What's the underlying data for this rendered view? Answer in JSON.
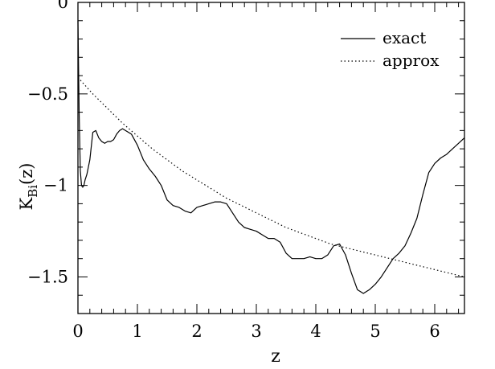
{
  "chart_data": {
    "type": "line",
    "title": "",
    "xlabel": "z",
    "ylabel": "K",
    "ylabel_sub": "Bi",
    "ylabel_suffix": "(z)",
    "xlim": [
      0,
      6.5
    ],
    "ylim": [
      -1.7,
      0
    ],
    "grid": false,
    "legend_position": "top-right",
    "x_ticks": [
      {
        "value": 0,
        "label": "0"
      },
      {
        "value": 1,
        "label": "1"
      },
      {
        "value": 2,
        "label": "2"
      },
      {
        "value": 3,
        "label": "3"
      },
      {
        "value": 4,
        "label": "4"
      },
      {
        "value": 5,
        "label": "5"
      },
      {
        "value": 6,
        "label": "6"
      }
    ],
    "y_ticks": [
      {
        "value": 0,
        "label": "0"
      },
      {
        "value": -0.5,
        "label": "−0.5"
      },
      {
        "value": -1,
        "label": "−1"
      },
      {
        "value": -1.5,
        "label": "−1.5"
      }
    ],
    "series": [
      {
        "name": "exact",
        "style": "solid",
        "color": "#000000",
        "x": [
          0,
          0.02,
          0.04,
          0.06,
          0.08,
          0.1,
          0.12,
          0.15,
          0.2,
          0.25,
          0.3,
          0.35,
          0.4,
          0.45,
          0.5,
          0.55,
          0.6,
          0.65,
          0.7,
          0.75,
          0.8,
          0.9,
          1.0,
          1.1,
          1.2,
          1.3,
          1.4,
          1.5,
          1.6,
          1.7,
          1.8,
          1.9,
          2.0,
          2.1,
          2.2,
          2.3,
          2.4,
          2.5,
          2.6,
          2.7,
          2.8,
          2.9,
          3.0,
          3.1,
          3.2,
          3.3,
          3.4,
          3.5,
          3.6,
          3.7,
          3.8,
          3.9,
          4.0,
          4.1,
          4.2,
          4.3,
          4.4,
          4.5,
          4.6,
          4.7,
          4.8,
          4.9,
          5.0,
          5.1,
          5.2,
          5.3,
          5.4,
          5.5,
          5.6,
          5.7,
          5.8,
          5.9,
          6.0,
          6.1,
          6.2,
          6.3,
          6.4,
          6.5
        ],
        "y": [
          -0.1,
          -0.6,
          -0.92,
          -1.0,
          -1.01,
          -1.0,
          -0.97,
          -0.94,
          -0.86,
          -0.71,
          -0.7,
          -0.74,
          -0.76,
          -0.77,
          -0.76,
          -0.76,
          -0.75,
          -0.72,
          -0.7,
          -0.69,
          -0.7,
          -0.72,
          -0.78,
          -0.86,
          -0.91,
          -0.95,
          -1.0,
          -1.08,
          -1.11,
          -1.12,
          -1.14,
          -1.15,
          -1.12,
          -1.11,
          -1.1,
          -1.09,
          -1.09,
          -1.1,
          -1.15,
          -1.2,
          -1.23,
          -1.24,
          -1.25,
          -1.27,
          -1.29,
          -1.29,
          -1.31,
          -1.37,
          -1.4,
          -1.4,
          -1.4,
          -1.39,
          -1.4,
          -1.4,
          -1.38,
          -1.33,
          -1.32,
          -1.38,
          -1.48,
          -1.57,
          -1.59,
          -1.57,
          -1.54,
          -1.5,
          -1.45,
          -1.4,
          -1.37,
          -1.33,
          -1.26,
          -1.18,
          -1.05,
          -0.93,
          -0.88,
          -0.85,
          -0.83,
          -0.8,
          -0.77,
          -0.74
        ]
      },
      {
        "name": "approx",
        "style": "dotted",
        "color": "#000000",
        "x": [
          0,
          0.25,
          0.5,
          0.75,
          1.0,
          1.25,
          1.5,
          1.75,
          2.0,
          2.25,
          2.5,
          2.75,
          3.0,
          3.25,
          3.5,
          3.75,
          4.0,
          4.25,
          4.5,
          4.75,
          5.0,
          5.25,
          5.5,
          5.75,
          6.0,
          6.25,
          6.5
        ],
        "y": [
          -0.41,
          -0.5,
          -0.58,
          -0.66,
          -0.73,
          -0.8,
          -0.86,
          -0.92,
          -0.97,
          -1.02,
          -1.07,
          -1.11,
          -1.15,
          -1.19,
          -1.23,
          -1.26,
          -1.29,
          -1.32,
          -1.34,
          -1.36,
          -1.38,
          -1.4,
          -1.42,
          -1.44,
          -1.46,
          -1.48,
          -1.5
        ]
      }
    ]
  }
}
